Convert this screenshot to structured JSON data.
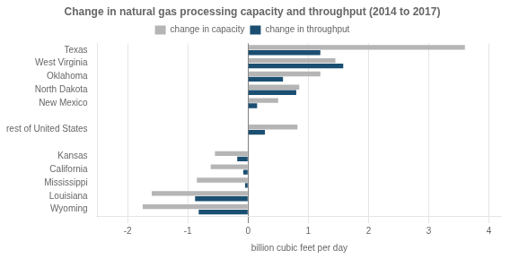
{
  "chart_data": {
    "type": "bar",
    "orientation": "horizontal",
    "title": "Change in natural gas processing capacity and throughput (2014 to 2017)",
    "xlabel": "billion cubic feet per day",
    "categories": [
      "Texas",
      "West Virginia",
      "Oklahoma",
      "North Dakota",
      "New Mexico",
      null,
      "rest of United States",
      null,
      "Kansas",
      "California",
      "Mississippi",
      "Louisiana",
      "Wyoming"
    ],
    "series": [
      {
        "name": "change in capacity",
        "color": "#b5b5b5",
        "values": [
          3.6,
          1.45,
          1.2,
          0.85,
          0.5,
          null,
          0.82,
          null,
          -0.55,
          -0.62,
          -0.85,
          -1.6,
          -1.75
        ]
      },
      {
        "name": "change in throughput",
        "color": "#1b4f72",
        "values": [
          1.2,
          1.58,
          0.58,
          0.8,
          0.15,
          null,
          0.28,
          null,
          -0.18,
          -0.08,
          -0.05,
          -0.88,
          -0.82
        ]
      }
    ],
    "xlim": [
      -2.5,
      4.2
    ],
    "xticks": [
      -2,
      -1,
      0,
      1,
      2,
      3,
      4
    ],
    "grid": true,
    "legend": "top"
  }
}
